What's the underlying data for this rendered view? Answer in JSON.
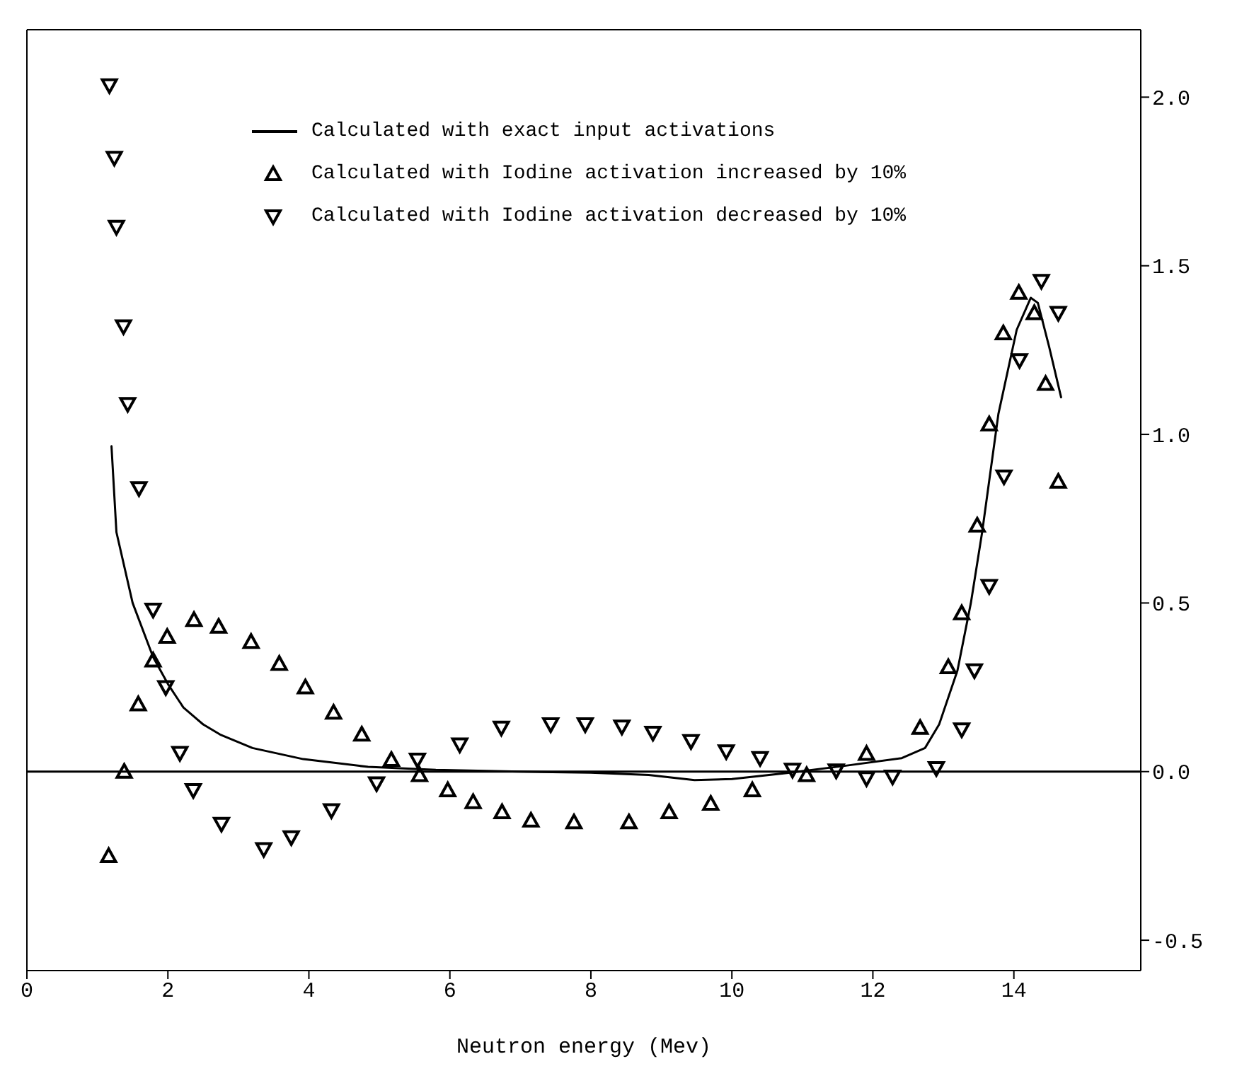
{
  "chart_data": {
    "type": "scatter",
    "xlabel": "Neutron energy (Mev)",
    "xlim": [
      0,
      15.8
    ],
    "xticks": [
      0,
      2,
      4,
      6,
      8,
      10,
      12,
      14
    ],
    "ylim": [
      -0.59,
      2.2
    ],
    "yticks": [
      -0.5,
      {
        "value": 0,
        "label": "0.0"
      },
      0.5,
      {
        "value": 1,
        "label": "1.0"
      },
      1.5,
      {
        "value": 2,
        "label": "2.0"
      }
    ],
    "legend": "top",
    "ref_lines": [
      {
        "axis": "y",
        "value": 0,
        "color": "#000000"
      }
    ],
    "series": [
      {
        "name": "Calculated with exact input activations",
        "type": "line",
        "color": "#000000",
        "line_style": "solid",
        "marker": "none",
        "x": [
          1.2,
          1.27,
          1.5,
          1.79,
          2.0,
          2.22,
          2.5,
          2.74,
          3.2,
          3.92,
          4.84,
          5.8,
          7.0,
          8.0,
          8.82,
          9.47,
          10.0,
          10.78,
          11.56,
          12.41,
          12.74,
          12.94,
          13.2,
          13.39,
          13.55,
          13.78,
          14.04,
          14.24,
          14.34,
          14.5,
          14.67
        ],
        "values": [
          0.965,
          0.71,
          0.5,
          0.34,
          0.26,
          0.19,
          0.14,
          0.11,
          0.07,
          0.037,
          0.014,
          0.005,
          0.0,
          -0.003,
          -0.01,
          -0.025,
          -0.022,
          -0.004,
          0.016,
          0.04,
          0.07,
          0.14,
          0.3,
          0.5,
          0.71,
          1.06,
          1.31,
          1.405,
          1.39,
          1.26,
          1.11
        ]
      },
      {
        "name": "Calculated with Iodine activation increased by 10%",
        "color": "#000000",
        "marker": "triangle",
        "x": [
          1.16,
          1.38,
          1.58,
          1.79,
          1.99,
          2.37,
          2.72,
          3.18,
          3.58,
          3.95,
          4.35,
          4.75,
          5.17,
          5.57,
          5.97,
          6.33,
          6.74,
          7.15,
          7.76,
          8.54,
          9.11,
          9.7,
          10.29,
          11.06,
          11.91,
          12.67,
          13.07,
          13.26,
          13.48,
          13.65,
          13.85,
          14.07,
          14.29,
          14.45,
          14.63
        ],
        "values": [
          -0.25,
          0.0,
          0.2,
          0.33,
          0.4,
          0.45,
          0.43,
          0.385,
          0.32,
          0.25,
          0.175,
          0.11,
          0.035,
          -0.01,
          -0.055,
          -0.09,
          -0.12,
          -0.145,
          -0.15,
          -0.15,
          -0.12,
          -0.095,
          -0.055,
          -0.01,
          0.053,
          0.13,
          0.31,
          0.47,
          0.73,
          1.03,
          1.3,
          1.42,
          1.36,
          1.15,
          0.86
        ]
      },
      {
        "name": "Calculated with Iodine activation decreased by 10%",
        "color": "#000000",
        "marker": "triangle-down",
        "x": [
          1.17,
          1.24,
          1.27,
          1.37,
          1.43,
          1.59,
          1.79,
          1.97,
          2.17,
          2.36,
          2.76,
          3.36,
          3.75,
          4.32,
          4.96,
          5.54,
          6.14,
          6.73,
          7.43,
          7.92,
          8.44,
          8.88,
          9.42,
          9.92,
          10.4,
          10.86,
          11.48,
          11.91,
          12.28,
          12.9,
          13.26,
          13.44,
          13.65,
          13.86,
          14.08,
          14.39,
          14.63
        ],
        "values": [
          2.035,
          1.82,
          1.615,
          1.32,
          1.09,
          0.84,
          0.48,
          0.25,
          0.055,
          -0.055,
          -0.155,
          -0.23,
          -0.195,
          -0.115,
          -0.035,
          0.035,
          0.08,
          0.13,
          0.14,
          0.14,
          0.133,
          0.115,
          0.09,
          0.06,
          0.04,
          0.005,
          0.003,
          -0.02,
          -0.015,
          0.01,
          0.125,
          0.3,
          0.55,
          0.875,
          1.22,
          1.455,
          1.36
        ]
      }
    ]
  }
}
